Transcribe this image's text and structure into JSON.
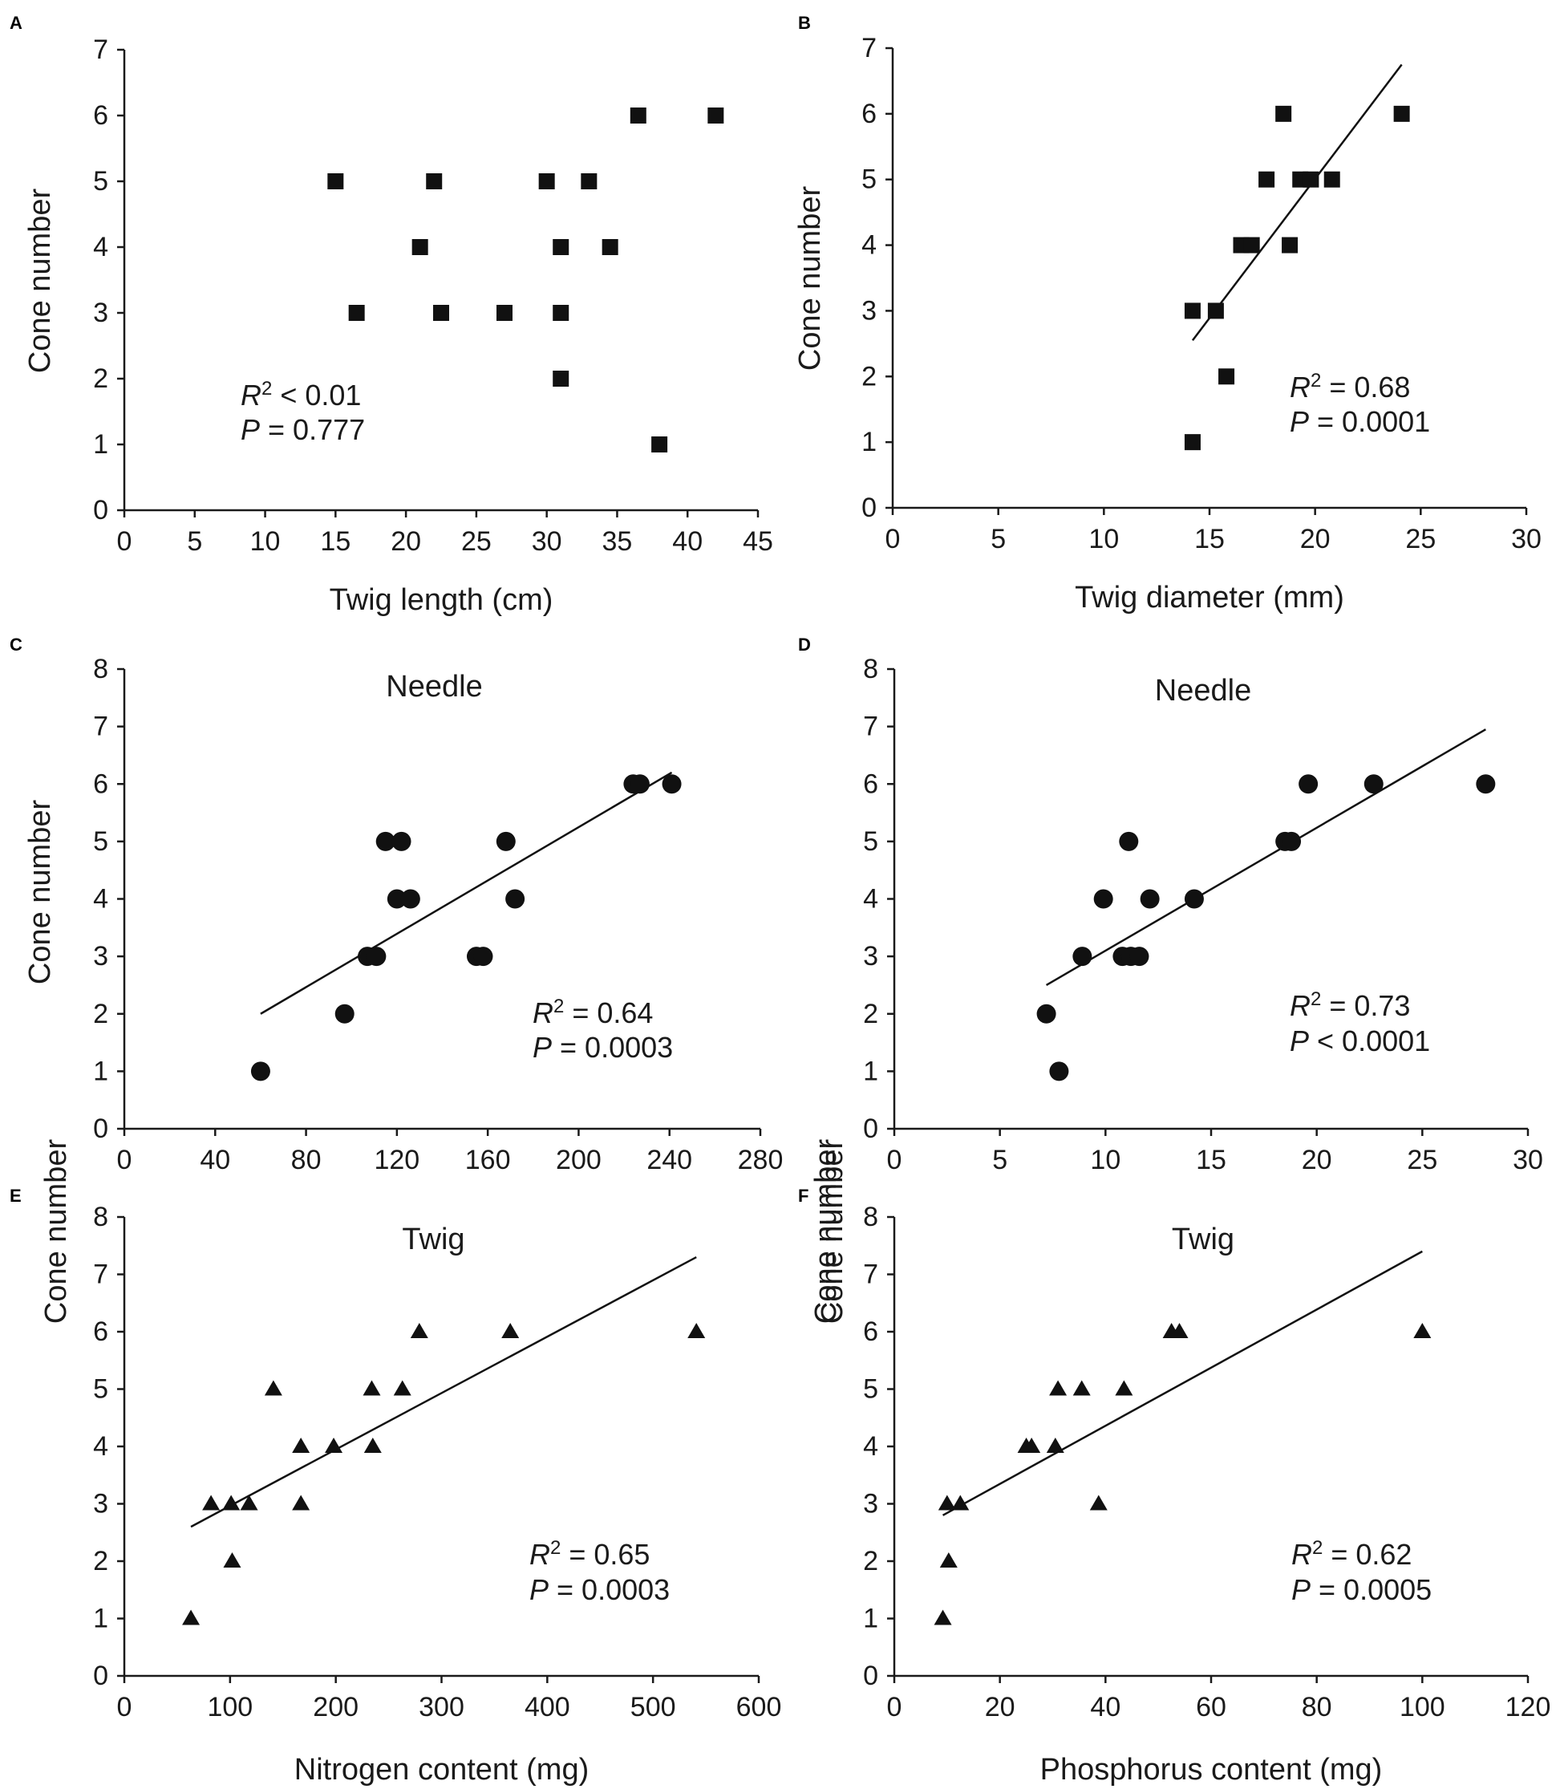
{
  "chart_data": [
    {
      "type": "scatter",
      "panel": "A",
      "title": "",
      "xlabel": "Twig length (cm)",
      "ylabel": "Cone number",
      "xlim": [
        0,
        45
      ],
      "ylim": [
        0,
        7
      ],
      "xticks": [
        0,
        5,
        10,
        15,
        20,
        25,
        30,
        35,
        40,
        45
      ],
      "yticks": [
        0,
        1,
        2,
        3,
        4,
        5,
        6,
        7
      ],
      "marker": "square",
      "points": [
        [
          15,
          5
        ],
        [
          16.5,
          3
        ],
        [
          21,
          4
        ],
        [
          22,
          5
        ],
        [
          22.5,
          3
        ],
        [
          27,
          3
        ],
        [
          30,
          5
        ],
        [
          31,
          4
        ],
        [
          31,
          3
        ],
        [
          31,
          2
        ],
        [
          33,
          5
        ],
        [
          34.5,
          4
        ],
        [
          36.5,
          6
        ],
        [
          38,
          1
        ],
        [
          42,
          6
        ]
      ],
      "fit": null,
      "stats": [
        "R² < 0.01",
        "P = 0.777"
      ]
    },
    {
      "type": "scatter",
      "panel": "B",
      "title": "",
      "xlabel": "Twig diameter (mm)",
      "ylabel": "Cone number",
      "xlim": [
        0,
        30
      ],
      "ylim": [
        0,
        7
      ],
      "xticks": [
        0,
        5,
        10,
        15,
        20,
        25,
        30
      ],
      "yticks": [
        0,
        1,
        2,
        3,
        4,
        5,
        6,
        7
      ],
      "marker": "square",
      "points": [
        [
          14.2,
          1
        ],
        [
          14.2,
          3
        ],
        [
          15.3,
          3
        ],
        [
          15.8,
          2
        ],
        [
          16.5,
          4
        ],
        [
          17,
          4
        ],
        [
          17.7,
          5
        ],
        [
          18.5,
          6
        ],
        [
          18.8,
          4
        ],
        [
          19.3,
          5
        ],
        [
          19.8,
          5
        ],
        [
          20.8,
          5
        ],
        [
          24.1,
          6
        ]
      ],
      "fit": [
        [
          14.2,
          2.55
        ],
        [
          24.1,
          6.75
        ]
      ],
      "stats": [
        "R² = 0.68",
        "P = 0.0001"
      ]
    },
    {
      "type": "scatter",
      "panel": "C",
      "title": "Needle",
      "xlabel": "",
      "ylabel": "Cone number",
      "xlim": [
        0,
        280
      ],
      "ylim": [
        0,
        8
      ],
      "xticks": [
        0,
        40,
        80,
        120,
        160,
        200,
        240,
        280
      ],
      "yticks": [
        0,
        1,
        2,
        3,
        4,
        5,
        6,
        7,
        8
      ],
      "marker": "circle",
      "points": [
        [
          60,
          1
        ],
        [
          97,
          2
        ],
        [
          107,
          3
        ],
        [
          111,
          3
        ],
        [
          115,
          5
        ],
        [
          120,
          4
        ],
        [
          122,
          5
        ],
        [
          126,
          4
        ],
        [
          155,
          3
        ],
        [
          158,
          3
        ],
        [
          168,
          5
        ],
        [
          172,
          4
        ],
        [
          224,
          6
        ],
        [
          227,
          6
        ],
        [
          241,
          6
        ]
      ],
      "fit": [
        [
          60,
          2.0
        ],
        [
          241,
          6.2
        ]
      ],
      "stats": [
        "R² = 0.64",
        "P = 0.0003"
      ]
    },
    {
      "type": "scatter",
      "panel": "D",
      "title": "Needle",
      "xlabel": "",
      "ylabel": "Cone number",
      "xlim": [
        0,
        30
      ],
      "ylim": [
        0,
        8
      ],
      "xticks": [
        0,
        5,
        10,
        15,
        20,
        25,
        30
      ],
      "yticks": [
        0,
        1,
        2,
        3,
        4,
        5,
        6,
        7,
        8
      ],
      "marker": "circle",
      "points": [
        [
          7.2,
          2
        ],
        [
          7.8,
          1
        ],
        [
          8.9,
          3
        ],
        [
          9.9,
          4
        ],
        [
          10.8,
          3
        ],
        [
          11.1,
          5
        ],
        [
          11.2,
          3
        ],
        [
          11.6,
          3
        ],
        [
          12.1,
          4
        ],
        [
          14.2,
          4
        ],
        [
          18.5,
          5
        ],
        [
          18.8,
          5
        ],
        [
          19.6,
          6
        ],
        [
          22.7,
          6
        ],
        [
          28,
          6
        ]
      ],
      "fit": [
        [
          7.2,
          2.5
        ],
        [
          28,
          6.95
        ]
      ],
      "stats": [
        "R² = 0.73",
        "P < 0.0001"
      ]
    },
    {
      "type": "scatter",
      "panel": "E",
      "title": "Twig",
      "xlabel": "Nitrogen content (mg)",
      "ylabel": "Cone number",
      "xlim": [
        0,
        600
      ],
      "ylim": [
        0,
        8
      ],
      "xticks": [
        0,
        100,
        200,
        300,
        400,
        500,
        600
      ],
      "yticks": [
        0,
        1,
        2,
        3,
        4,
        5,
        6,
        7,
        8
      ],
      "marker": "triangle",
      "points": [
        [
          63,
          1
        ],
        [
          82,
          3
        ],
        [
          101,
          3
        ],
        [
          102,
          2
        ],
        [
          118,
          3
        ],
        [
          141,
          5
        ],
        [
          167,
          4
        ],
        [
          167,
          3
        ],
        [
          198,
          4
        ],
        [
          234,
          5
        ],
        [
          235,
          4
        ],
        [
          263,
          5
        ],
        [
          279,
          6
        ],
        [
          365,
          6
        ],
        [
          541,
          6
        ]
      ],
      "fit": [
        [
          63,
          2.6
        ],
        [
          541,
          7.3
        ]
      ],
      "stats": [
        "R² = 0.65",
        "P = 0.0003"
      ]
    },
    {
      "type": "scatter",
      "panel": "F",
      "title": "Twig",
      "xlabel": "Phosphorus content (mg)",
      "ylabel": "Cone number",
      "xlim": [
        0,
        120
      ],
      "ylim": [
        0,
        8
      ],
      "xticks": [
        0,
        20,
        40,
        60,
        80,
        100,
        120
      ],
      "yticks": [
        0,
        1,
        2,
        3,
        4,
        5,
        6,
        7,
        8
      ],
      "marker": "triangle",
      "points": [
        [
          9.2,
          1
        ],
        [
          10,
          3
        ],
        [
          10.3,
          2
        ],
        [
          12.5,
          3
        ],
        [
          25,
          4
        ],
        [
          26,
          4
        ],
        [
          30.5,
          4
        ],
        [
          31,
          5
        ],
        [
          35.5,
          5
        ],
        [
          38.7,
          3
        ],
        [
          43.5,
          5
        ],
        [
          52.5,
          6
        ],
        [
          54,
          6
        ],
        [
          100,
          6
        ]
      ],
      "fit": [
        [
          9.2,
          2.8
        ],
        [
          100,
          7.4
        ]
      ],
      "stats": [
        "R² = 0.62",
        "P = 0.0005"
      ]
    }
  ]
}
